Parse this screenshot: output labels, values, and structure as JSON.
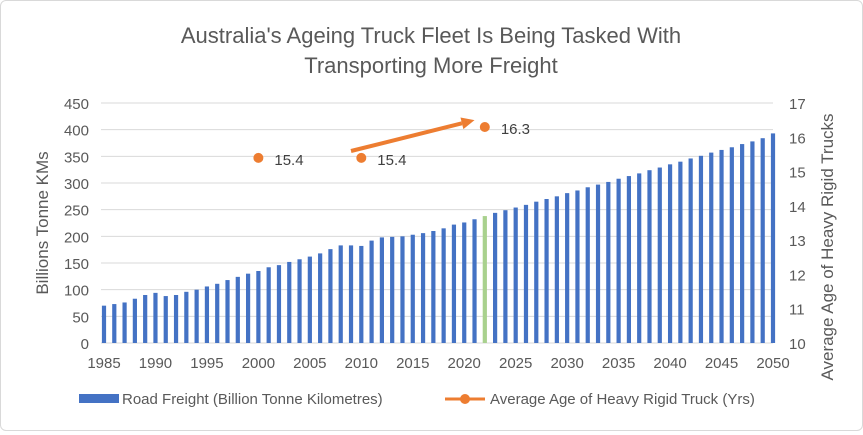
{
  "chart_data": {
    "type": "bar",
    "title_line1": "Australia's Ageing Truck Fleet Is Being Tasked With",
    "title_line2": "Transporting More Freight",
    "ylabel": "Billions Tonne KMs",
    "y2label": "Average Age of Heavy Rigid Trucks",
    "xlabel": "",
    "ylim": [
      0,
      450
    ],
    "y2lim": [
      10,
      17
    ],
    "grid": true,
    "legend_position": "bottom",
    "x_ticks": [
      "1985",
      "1990",
      "1995",
      "2000",
      "2005",
      "2010",
      "2015",
      "2020",
      "2025",
      "2030",
      "2035",
      "2040",
      "2045",
      "2050"
    ],
    "y_ticks": [
      "0",
      "50",
      "100",
      "150",
      "200",
      "250",
      "300",
      "350",
      "400",
      "450"
    ],
    "y2_ticks": [
      "10",
      "11",
      "12",
      "13",
      "14",
      "15",
      "16",
      "17"
    ],
    "series": [
      {
        "name": "Road Freight (Billion Tonne Kilometres)",
        "type": "bar",
        "color": "#4472c4",
        "highlight_color": "#a9d18e",
        "highlight_year": 2022,
        "x": [
          1985,
          1986,
          1987,
          1988,
          1989,
          1990,
          1991,
          1992,
          1993,
          1994,
          1995,
          1996,
          1997,
          1998,
          1999,
          2000,
          2001,
          2002,
          2003,
          2004,
          2005,
          2006,
          2007,
          2008,
          2009,
          2010,
          2011,
          2012,
          2013,
          2014,
          2015,
          2016,
          2017,
          2018,
          2019,
          2020,
          2021,
          2022,
          2023,
          2024,
          2025,
          2026,
          2027,
          2028,
          2029,
          2030,
          2031,
          2032,
          2033,
          2034,
          2035,
          2036,
          2037,
          2038,
          2039,
          2040,
          2041,
          2042,
          2043,
          2044,
          2045,
          2046,
          2047,
          2048,
          2049,
          2050
        ],
        "values": [
          70,
          73,
          76,
          83,
          90,
          94,
          88,
          90,
          96,
          100,
          106,
          111,
          118,
          124,
          130,
          135,
          142,
          146,
          152,
          157,
          162,
          168,
          176,
          183,
          183,
          182,
          192,
          198,
          199,
          200,
          203,
          206,
          210,
          215,
          222,
          226,
          232,
          238,
          244,
          249,
          254,
          259,
          265,
          270,
          275,
          281,
          286,
          292,
          297,
          302,
          308,
          313,
          318,
          324,
          329,
          335,
          340,
          346,
          351,
          357,
          362,
          367,
          373,
          378,
          384,
          393
        ]
      },
      {
        "name": "Average Age of Heavy Rigid Truck (Yrs)",
        "type": "scatter",
        "color": "#ed7d31",
        "x": [
          2000,
          2010,
          2022
        ],
        "values": [
          15.4,
          15.4,
          16.3
        ],
        "labels": [
          "15.4",
          "15.4",
          "16.3"
        ]
      }
    ],
    "annotations": [
      {
        "type": "arrow",
        "color": "#ed7d31",
        "from": [
          2009,
          15.6
        ],
        "to": [
          2021,
          16.5
        ]
      }
    ]
  }
}
